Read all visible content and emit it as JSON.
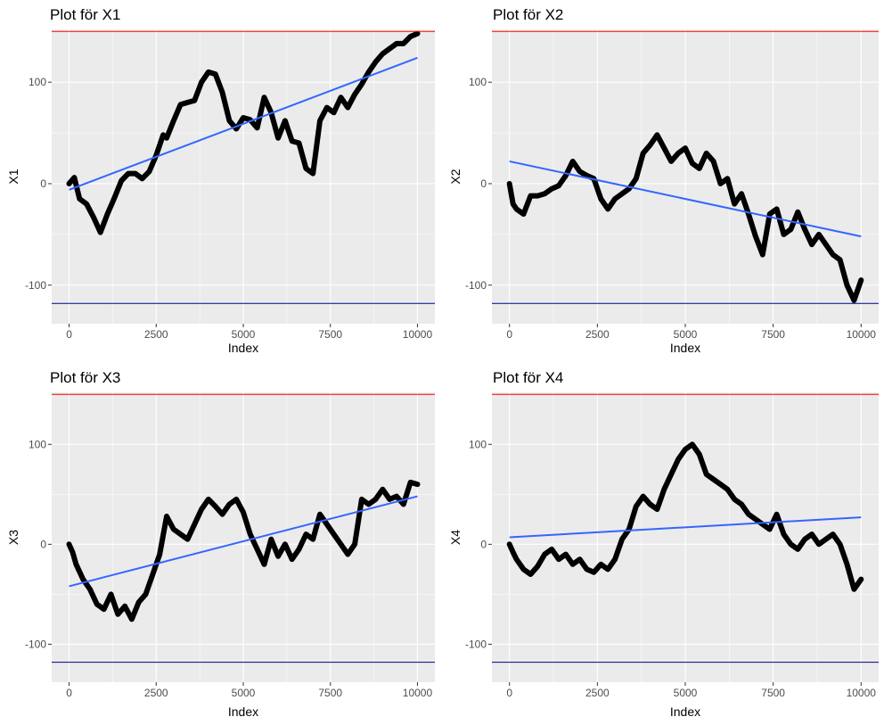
{
  "colors": {
    "panel_bg": "#EBEBEB",
    "grid_major": "#FFFFFF",
    "series": "#000000",
    "trend": "#3366FF",
    "upper_ref": "#FF0000",
    "lower_ref": "#00008B"
  },
  "chart_data": [
    {
      "type": "line",
      "title": "Plot för X1",
      "xlabel": "Index",
      "ylabel": "X1",
      "xlim": [
        -500,
        10500
      ],
      "ylim": [
        -138,
        152
      ],
      "x_ticks": [
        0,
        2500,
        5000,
        7500,
        10000
      ],
      "x_tick_labels": [
        "0",
        "2500",
        "5000",
        "7500",
        "10000"
      ],
      "y_ticks": [
        -100,
        0,
        100
      ],
      "y_tick_labels": [
        "-100",
        "0",
        "100"
      ],
      "grid": true,
      "hlines": [
        {
          "name": "upper",
          "y": 150
        },
        {
          "name": "lower",
          "y": -118
        }
      ],
      "trend": {
        "x": [
          0,
          10000
        ],
        "y": [
          -6,
          124
        ]
      },
      "x": [
        0,
        150,
        300,
        500,
        700,
        900,
        1100,
        1300,
        1500,
        1700,
        1900,
        2100,
        2300,
        2500,
        2700,
        2800,
        3000,
        3200,
        3400,
        3600,
        3800,
        4000,
        4200,
        4400,
        4600,
        4800,
        5000,
        5200,
        5400,
        5600,
        5800,
        6000,
        6200,
        6400,
        6600,
        6800,
        7000,
        7200,
        7400,
        7600,
        7800,
        8000,
        8200,
        8400,
        8600,
        8800,
        9000,
        9200,
        9400,
        9600,
        9800,
        10000
      ],
      "y": [
        0,
        6,
        -15,
        -20,
        -33,
        -48,
        -30,
        -14,
        3,
        10,
        10,
        5,
        12,
        28,
        48,
        45,
        62,
        78,
        80,
        82,
        100,
        110,
        108,
        90,
        62,
        54,
        65,
        63,
        55,
        85,
        70,
        45,
        62,
        42,
        40,
        15,
        10,
        62,
        75,
        70,
        85,
        75,
        88,
        98,
        110,
        120,
        128,
        133,
        138,
        138,
        145,
        148
      ]
    },
    {
      "type": "line",
      "title": "Plot för X2",
      "xlabel": "Index",
      "ylabel": "X2",
      "xlim": [
        -500,
        10500
      ],
      "ylim": [
        -138,
        152
      ],
      "x_ticks": [
        0,
        2500,
        5000,
        7500,
        10000
      ],
      "x_tick_labels": [
        "0",
        "2500",
        "5000",
        "7500",
        "10000"
      ],
      "y_ticks": [
        -100,
        0,
        100
      ],
      "y_tick_labels": [
        "-100",
        "0",
        "100"
      ],
      "grid": true,
      "hlines": [
        {
          "name": "upper",
          "y": 150
        },
        {
          "name": "lower",
          "y": -118
        }
      ],
      "trend": {
        "x": [
          0,
          10000
        ],
        "y": [
          22,
          -52
        ]
      },
      "x": [
        0,
        100,
        200,
        400,
        600,
        800,
        1000,
        1200,
        1400,
        1600,
        1800,
        2000,
        2200,
        2400,
        2600,
        2800,
        3000,
        3200,
        3400,
        3600,
        3800,
        4000,
        4200,
        4400,
        4600,
        4800,
        5000,
        5200,
        5400,
        5600,
        5800,
        6000,
        6200,
        6400,
        6600,
        6800,
        7000,
        7200,
        7400,
        7600,
        7800,
        8000,
        8200,
        8400,
        8600,
        8800,
        9000,
        9200,
        9400,
        9600,
        9800,
        10000
      ],
      "y": [
        0,
        -20,
        -25,
        -30,
        -12,
        -12,
        -10,
        -5,
        -2,
        8,
        22,
        12,
        8,
        5,
        -15,
        -25,
        -15,
        -10,
        -5,
        5,
        30,
        38,
        48,
        35,
        22,
        30,
        35,
        20,
        15,
        30,
        22,
        0,
        5,
        -20,
        -10,
        -30,
        -52,
        -70,
        -30,
        -25,
        -50,
        -45,
        -28,
        -45,
        -60,
        -50,
        -60,
        -70,
        -75,
        -100,
        -115,
        -95
      ]
    },
    {
      "type": "line",
      "title": "Plot för X3",
      "xlabel": "Index",
      "ylabel": "X3",
      "xlim": [
        -500,
        10500
      ],
      "ylim": [
        -138,
        152
      ],
      "x_ticks": [
        0,
        2500,
        5000,
        7500,
        10000
      ],
      "x_tick_labels": [
        "0",
        "2500",
        "5000",
        "7500",
        "10000"
      ],
      "y_ticks": [
        -100,
        0,
        100
      ],
      "y_tick_labels": [
        "-100",
        "0",
        "100"
      ],
      "grid": true,
      "hlines": [
        {
          "name": "upper",
          "y": 150
        },
        {
          "name": "lower",
          "y": -118
        }
      ],
      "trend": {
        "x": [
          0,
          10000
        ],
        "y": [
          -42,
          48
        ]
      },
      "x": [
        0,
        100,
        200,
        400,
        600,
        800,
        1000,
        1200,
        1400,
        1600,
        1800,
        2000,
        2200,
        2400,
        2600,
        2800,
        3000,
        3200,
        3400,
        3600,
        3800,
        4000,
        4200,
        4400,
        4600,
        4800,
        5000,
        5200,
        5400,
        5600,
        5800,
        6000,
        6200,
        6400,
        6600,
        6800,
        7000,
        7200,
        7400,
        7600,
        7800,
        8000,
        8200,
        8400,
        8600,
        8800,
        9000,
        9200,
        9400,
        9600,
        9800,
        10000
      ],
      "y": [
        0,
        -8,
        -20,
        -35,
        -45,
        -60,
        -65,
        -50,
        -70,
        -62,
        -75,
        -58,
        -50,
        -30,
        -10,
        28,
        15,
        10,
        5,
        20,
        35,
        45,
        38,
        30,
        40,
        45,
        32,
        10,
        -5,
        -20,
        5,
        -12,
        0,
        -15,
        -5,
        10,
        5,
        30,
        20,
        10,
        0,
        -10,
        0,
        45,
        40,
        45,
        55,
        45,
        48,
        40,
        62,
        60
      ]
    },
    {
      "type": "line",
      "title": "Plot för X4",
      "xlabel": "Index",
      "ylabel": "X4",
      "xlim": [
        -500,
        10500
      ],
      "ylim": [
        -138,
        152
      ],
      "x_ticks": [
        0,
        2500,
        5000,
        7500,
        10000
      ],
      "x_tick_labels": [
        "0",
        "2500",
        "5000",
        "7500",
        "10000"
      ],
      "y_ticks": [
        -100,
        0,
        100
      ],
      "y_tick_labels": [
        "-100",
        "0",
        "100"
      ],
      "grid": true,
      "hlines": [
        {
          "name": "upper",
          "y": 150
        },
        {
          "name": "lower",
          "y": -118
        }
      ],
      "trend": {
        "x": [
          0,
          10000
        ],
        "y": [
          7,
          27
        ]
      },
      "x": [
        0,
        100,
        200,
        400,
        600,
        800,
        1000,
        1200,
        1400,
        1600,
        1800,
        2000,
        2200,
        2400,
        2600,
        2800,
        3000,
        3200,
        3400,
        3600,
        3800,
        4000,
        4200,
        4400,
        4600,
        4800,
        5000,
        5200,
        5400,
        5600,
        5800,
        6000,
        6200,
        6400,
        6600,
        6800,
        7000,
        7200,
        7400,
        7600,
        7800,
        8000,
        8200,
        8400,
        8600,
        8800,
        9000,
        9200,
        9400,
        9600,
        9800,
        10000
      ],
      "y": [
        0,
        -8,
        -15,
        -25,
        -30,
        -22,
        -10,
        -5,
        -15,
        -10,
        -20,
        -15,
        -25,
        -28,
        -20,
        -25,
        -15,
        5,
        15,
        38,
        48,
        40,
        35,
        55,
        70,
        85,
        95,
        100,
        90,
        70,
        65,
        60,
        55,
        45,
        40,
        30,
        25,
        20,
        15,
        30,
        10,
        0,
        -5,
        5,
        10,
        0,
        5,
        10,
        0,
        -20,
        -45,
        -35
      ]
    }
  ]
}
